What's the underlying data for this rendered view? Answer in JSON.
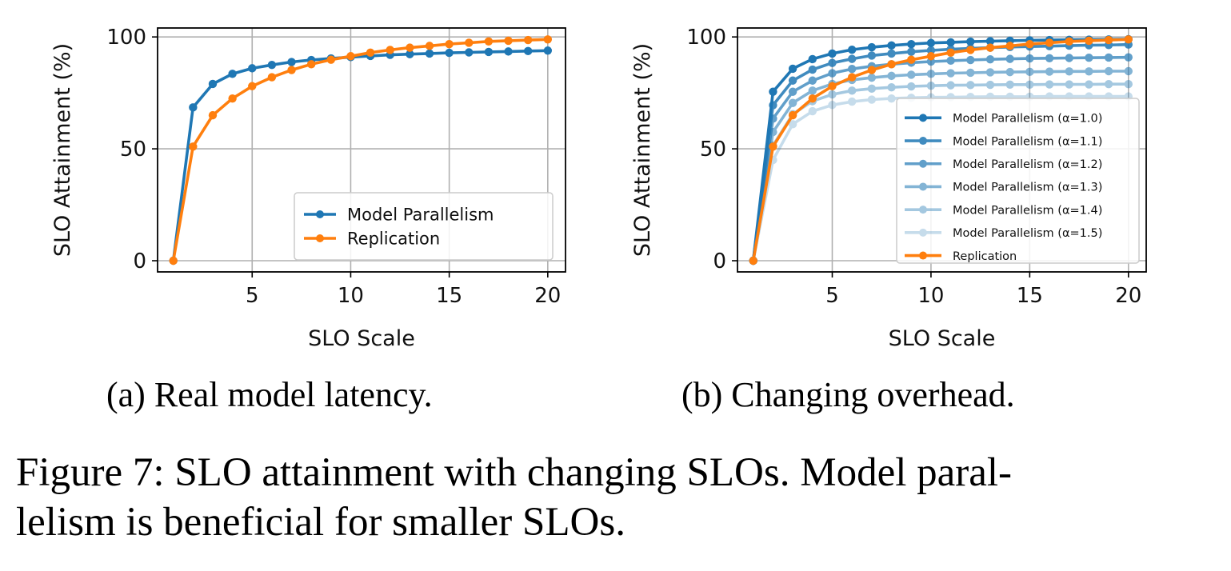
{
  "figure": {
    "caption": "Figure 7: SLO attainment with changing SLOs. Model parallelism is beneficial for smaller SLOs.",
    "caption_line1": "Figure 7: SLO attainment with changing SLOs. Model paral-",
    "caption_line2": "lelism is beneficial for smaller SLOs."
  },
  "colors": {
    "model_parallelism": "#1f77b4",
    "replication": "#ff7f0e",
    "grid": "#b0b0b0"
  },
  "chart_data": [
    {
      "type": "line",
      "subcaption": "(a) Real model latency.",
      "title": "",
      "xlabel": "SLO Scale",
      "ylabel": "SLO Attainment (%)",
      "xlim": [
        0.2,
        20.9
      ],
      "ylim": [
        -5,
        104
      ],
      "xticks": [
        5,
        10,
        15,
        20
      ],
      "yticks": [
        0,
        50,
        100
      ],
      "grid": true,
      "legend_position": "lower-right",
      "x": [
        1,
        2,
        3,
        4,
        5,
        6,
        7,
        8,
        9,
        10,
        11,
        12,
        13,
        14,
        15,
        16,
        17,
        18,
        19,
        20
      ],
      "series": [
        {
          "name": "Model Parallelism",
          "color": "#1f77b4",
          "alpha": 1.0,
          "values": [
            0,
            68.5,
            79,
            83.5,
            86,
            87.5,
            88.8,
            89.7,
            90.4,
            91,
            91.5,
            92,
            92.3,
            92.6,
            92.9,
            93.1,
            93.3,
            93.5,
            93.7,
            93.9
          ]
        },
        {
          "name": "Replication",
          "color": "#ff7f0e",
          "alpha": 1.0,
          "values": [
            0,
            51,
            65,
            72.5,
            78,
            82,
            85.2,
            87.8,
            89.8,
            91.4,
            93,
            94.2,
            95.2,
            96,
            96.8,
            97.4,
            98,
            98.3,
            98.6,
            98.9
          ]
        }
      ]
    },
    {
      "type": "line",
      "subcaption": "(b) Changing overhead.",
      "title": "",
      "xlabel": "SLO Scale",
      "ylabel": "SLO Attainment (%)",
      "xlim": [
        0.2,
        20.9
      ],
      "ylim": [
        -5,
        104
      ],
      "xticks": [
        5,
        10,
        15,
        20
      ],
      "yticks": [
        0,
        50,
        100
      ],
      "grid": true,
      "legend_position": "lower-right",
      "x": [
        1,
        2,
        3,
        4,
        5,
        6,
        7,
        8,
        9,
        10,
        11,
        12,
        13,
        14,
        15,
        16,
        17,
        18,
        19,
        20
      ],
      "series": [
        {
          "name": "Model Parallelism (α=1.0)",
          "color": "#1f77b4",
          "alpha": 1.0,
          "values": [
            0,
            75.5,
            85.8,
            90.1,
            92.6,
            94.3,
            95.4,
            96.2,
            96.8,
            97.3,
            97.6,
            97.9,
            98.1,
            98.3,
            98.5,
            98.6,
            98.7,
            98.8,
            98.9,
            99
          ]
        },
        {
          "name": "Model Parallelism (α=1.1)",
          "color": "#1f77b4",
          "alpha": 0.85,
          "values": [
            0,
            69.5,
            80.5,
            85.4,
            88.4,
            90.2,
            91.7,
            92.6,
            93.4,
            94,
            94.5,
            94.9,
            95.2,
            95.5,
            95.7,
            95.9,
            96.1,
            96.3,
            96.4,
            96.6
          ]
        },
        {
          "name": "Model Parallelism (α=1.2)",
          "color": "#1f77b4",
          "alpha": 0.7,
          "values": [
            0,
            63.5,
            75.5,
            80.5,
            83.8,
            85.7,
            86.9,
            87.8,
            88.5,
            89,
            89.4,
            89.7,
            90,
            90.2,
            90.4,
            90.5,
            90.6,
            90.7,
            90.8,
            90.9
          ]
        },
        {
          "name": "Model Parallelism (α=1.3)",
          "color": "#1f77b4",
          "alpha": 0.55,
          "values": [
            0,
            57.5,
            70.5,
            76,
            79,
            80.8,
            81.8,
            82.6,
            83.1,
            83.5,
            83.8,
            84,
            84.2,
            84.3,
            84.4,
            84.5,
            84.6,
            84.6,
            84.7,
            84.7
          ]
        },
        {
          "name": "Model Parallelism (α=1.4)",
          "color": "#1f77b4",
          "alpha": 0.4,
          "values": [
            0,
            51.5,
            65.5,
            71.3,
            74.3,
            76,
            76.9,
            77.5,
            77.9,
            78.2,
            78.4,
            78.5,
            78.6,
            78.7,
            78.7,
            78.8,
            78.8,
            78.8,
            78.9,
            78.9
          ]
        },
        {
          "name": "Model Parallelism (α=1.5)",
          "color": "#1f77b4",
          "alpha": 0.25,
          "values": [
            0,
            45,
            61,
            66.8,
            69.6,
            71.1,
            72,
            72.5,
            72.8,
            73,
            73.1,
            73.2,
            73.3,
            73.3,
            73.3,
            73.4,
            73.4,
            73.4,
            73.4,
            73.4
          ]
        },
        {
          "name": "Replication",
          "color": "#ff7f0e",
          "alpha": 1.0,
          "values": [
            0,
            51,
            65,
            72.5,
            78,
            82,
            85.2,
            87.8,
            89.8,
            91.4,
            93,
            94.2,
            95.2,
            96,
            96.8,
            97.4,
            98,
            98.3,
            98.6,
            98.9
          ]
        }
      ]
    }
  ]
}
